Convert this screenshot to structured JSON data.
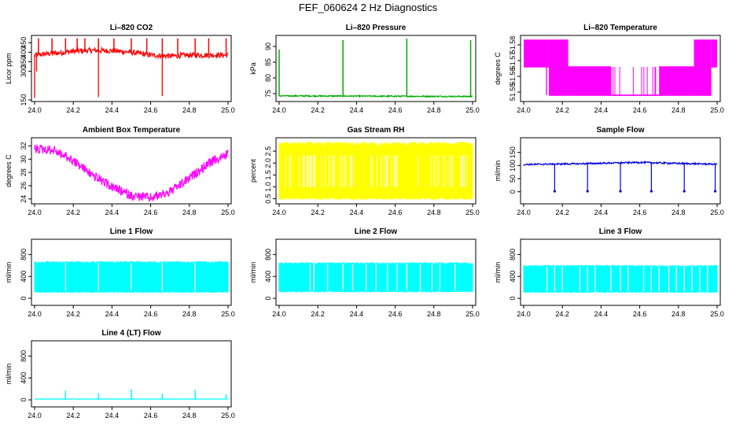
{
  "figure_title": "FEF_060624  2 Hz Diagnostics",
  "chart_data": [
    {
      "type": "line",
      "title": "Li–820 CO2",
      "ylabel": "Licor ppm",
      "color": "#ff0000",
      "xlim": [
        24.0,
        25.0
      ],
      "ylim": [
        150,
        480
      ],
      "x_ticks": [
        "24.0",
        "24.2",
        "24.4",
        "24.6",
        "24.8",
        "25.0"
      ],
      "y_ticks": [
        {
          "v": 150,
          "t": "150"
        },
        {
          "v": 300,
          "t": "300"
        },
        {
          "v": 350,
          "t": "350"
        },
        {
          "v": 400,
          "t": "400"
        },
        {
          "v": 450,
          "t": "450"
        }
      ],
      "series": {
        "base": [
          [
            24.0,
            385
          ],
          [
            24.1,
            395
          ],
          [
            24.2,
            405
          ],
          [
            24.3,
            410
          ],
          [
            24.4,
            408
          ],
          [
            24.5,
            400
          ],
          [
            24.6,
            385
          ],
          [
            24.7,
            380
          ],
          [
            24.8,
            385
          ],
          [
            24.9,
            385
          ],
          [
            25.0,
            385
          ]
        ],
        "noise": 14,
        "spikes_up": [
          24.02,
          24.09,
          24.16,
          24.22,
          24.26,
          24.33,
          24.41,
          24.5,
          24.58,
          24.66,
          24.74,
          24.83,
          24.9,
          24.99
        ],
        "spikes_down": [
          [
            24.0,
            160
          ],
          [
            24.33,
            165
          ],
          [
            24.66,
            170
          ],
          [
            24.01,
            300
          ]
        ]
      }
    },
    {
      "type": "line",
      "title": "Li–820 Pressure",
      "ylabel": "kPa",
      "color": "#00aa00",
      "xlim": [
        24.0,
        25.0
      ],
      "ylim": [
        73,
        93
      ],
      "x_ticks": [
        "24.0",
        "24.2",
        "24.4",
        "24.6",
        "24.8",
        "25.0"
      ],
      "y_ticks": [
        {
          "v": 75,
          "t": "75"
        },
        {
          "v": 80,
          "t": "80"
        },
        {
          "v": 85,
          "t": "85"
        },
        {
          "v": 90,
          "t": "90"
        }
      ],
      "series": {
        "base": [
          [
            24.0,
            74.3
          ],
          [
            25.0,
            74.1
          ]
        ],
        "noise": 0.2,
        "spikes_up_to": [
          [
            24.0,
            89
          ],
          [
            24.33,
            92
          ],
          [
            24.66,
            92.5
          ],
          [
            24.99,
            92
          ]
        ]
      }
    },
    {
      "type": "line",
      "title": "Li–820 Temperature",
      "ylabel": "degrees C",
      "color": "#ff00ff",
      "xlim": [
        24.0,
        25.0
      ],
      "ylim": [
        51.545,
        51.585
      ],
      "x_ticks": [
        "24.0",
        "24.2",
        "24.4",
        "24.6",
        "24.8",
        "25.0"
      ],
      "y_ticks": [
        {
          "v": 51.55,
          "t": "51.55"
        },
        {
          "v": 51.56,
          "t": "51.56"
        },
        {
          "v": 51.57,
          "t": "51.57"
        },
        {
          "v": 51.58,
          "t": "51.58"
        }
      ],
      "series": {
        "levels": [
          51.548,
          51.566,
          51.583
        ],
        "bands": [
          [
            24.0,
            24.13,
            1,
            2
          ],
          [
            24.13,
            24.23,
            0,
            2
          ],
          [
            24.23,
            24.45,
            0,
            1
          ],
          [
            24.45,
            24.7,
            0,
            0
          ],
          [
            24.7,
            24.88,
            0,
            1
          ],
          [
            24.88,
            24.97,
            0,
            2
          ],
          [
            24.97,
            25.0,
            1,
            2
          ]
        ]
      }
    },
    {
      "type": "line",
      "title": "Ambient Box Temperature",
      "ylabel": "degrees C",
      "color": "#ff00ff",
      "xlim": [
        24.0,
        25.0
      ],
      "ylim": [
        23.5,
        33
      ],
      "x_ticks": [
        "24.0",
        "24.2",
        "24.4",
        "24.6",
        "24.8",
        "25.0"
      ],
      "y_ticks": [
        {
          "v": 24,
          "t": "24"
        },
        {
          "v": 26,
          "t": "26"
        },
        {
          "v": 28,
          "t": "28"
        },
        {
          "v": 30,
          "t": "30"
        },
        {
          "v": 32,
          "t": "32"
        }
      ],
      "series": {
        "base": [
          [
            24.0,
            32.0
          ],
          [
            24.1,
            31.8
          ],
          [
            24.2,
            30.2
          ],
          [
            24.3,
            28.0
          ],
          [
            24.4,
            26.2
          ],
          [
            24.5,
            24.9
          ],
          [
            24.6,
            24.6
          ],
          [
            24.7,
            25.5
          ],
          [
            24.8,
            27.5
          ],
          [
            24.9,
            29.8
          ],
          [
            25.0,
            31.2
          ]
        ],
        "noise": 0.9
      }
    },
    {
      "type": "line",
      "title": "Gas Stream RH",
      "ylabel": "percent",
      "color": "#ffff00",
      "xlim": [
        24.0,
        25.0
      ],
      "ylim": [
        0.35,
        3.0
      ],
      "x_ticks": [
        "24.0",
        "24.2",
        "24.4",
        "24.6",
        "24.8",
        "25.0"
      ],
      "y_ticks": [
        {
          "v": 0.5,
          "t": "0.5"
        },
        {
          "v": 1.0,
          "t": "1.0"
        },
        {
          "v": 1.5,
          "t": "1.5"
        },
        {
          "v": 2.0,
          "t": "2.0"
        },
        {
          "v": 2.5,
          "t": "2.5"
        }
      ],
      "series": {
        "band": [
          0.45,
          2.9
        ]
      }
    },
    {
      "type": "line",
      "title": "Sample Flow",
      "ylabel": "ml/min",
      "color": "#0000dd",
      "xlim": [
        24.0,
        25.0
      ],
      "ylim": [
        -40,
        200
      ],
      "x_ticks": [
        "24.0",
        "24.2",
        "24.4",
        "24.6",
        "24.8",
        "25.0"
      ],
      "y_ticks": [
        {
          "v": 0,
          "t": "0"
        },
        {
          "v": 50,
          "t": "50"
        },
        {
          "v": 100,
          "t": "100"
        },
        {
          "v": 150,
          "t": "150"
        }
      ],
      "series": {
        "base": [
          [
            24.0,
            104
          ],
          [
            24.3,
            107
          ],
          [
            24.6,
            112
          ],
          [
            24.8,
            108
          ],
          [
            25.0,
            105
          ]
        ],
        "noise": 3,
        "dips": [
          24.16,
          24.33,
          24.5,
          24.66,
          24.83,
          24.99
        ]
      }
    },
    {
      "type": "line",
      "title": "Line 1 Flow",
      "ylabel": "ml/min",
      "color": "#00ffff",
      "xlim": [
        24.0,
        25.0
      ],
      "ylim": [
        -100,
        1050
      ],
      "x_ticks": [
        "24.0",
        "24.2",
        "24.4",
        "24.6",
        "24.8",
        "25.0"
      ],
      "y_ticks": [
        {
          "v": 0,
          "t": "0"
        },
        {
          "v": 400,
          "t": "400"
        },
        {
          "v": 800,
          "t": "800"
        }
      ],
      "series": {
        "band": [
          100,
          680
        ],
        "gaps": [
          24.16,
          24.33,
          24.5,
          24.66,
          24.83
        ]
      }
    },
    {
      "type": "line",
      "title": "Line 2 Flow",
      "ylabel": "ml/min",
      "color": "#00ffff",
      "xlim": [
        24.0,
        25.0
      ],
      "ylim": [
        -100,
        1050
      ],
      "x_ticks": [
        "24.0",
        "24.2",
        "24.4",
        "24.6",
        "24.8",
        "25.0"
      ],
      "y_ticks": [
        {
          "v": 0,
          "t": "0"
        },
        {
          "v": 400,
          "t": "400"
        },
        {
          "v": 800,
          "t": "800"
        }
      ],
      "series": {
        "band": [
          110,
          660
        ],
        "gaps": [
          24.16,
          24.18,
          24.25,
          24.33,
          24.38,
          24.45,
          24.5,
          24.56,
          24.61,
          24.66,
          24.73,
          24.79,
          24.83,
          24.91
        ]
      }
    },
    {
      "type": "line",
      "title": "Line 3 Flow",
      "ylabel": "ml/min",
      "color": "#00ffff",
      "xlim": [
        24.0,
        25.0
      ],
      "ylim": [
        -100,
        1050
      ],
      "x_ticks": [
        "24.0",
        "24.2",
        "24.4",
        "24.6",
        "24.8",
        "25.0"
      ],
      "y_ticks": [
        {
          "v": 0,
          "t": "0"
        },
        {
          "v": 400,
          "t": "400"
        },
        {
          "v": 800,
          "t": "800"
        }
      ],
      "series": {
        "band": [
          100,
          610
        ],
        "gaps": [
          24.12,
          24.16,
          24.2,
          24.29,
          24.33,
          24.37,
          24.45,
          24.5,
          24.54,
          24.62,
          24.66,
          24.7,
          24.75,
          24.79,
          24.83,
          24.87,
          24.91,
          24.95
        ]
      }
    },
    {
      "type": "line",
      "title": "Line 4 (LT) Flow",
      "ylabel": "ml/min",
      "color": "#00ffff",
      "xlim": [
        24.0,
        25.0
      ],
      "ylim": [
        -100,
        1050
      ],
      "x_ticks": [
        "24.0",
        "24.2",
        "24.4",
        "24.6",
        "24.8",
        "25.0"
      ],
      "y_ticks": [
        {
          "v": 0,
          "t": "0"
        },
        {
          "v": 400,
          "t": "400"
        },
        {
          "v": 800,
          "t": "800"
        }
      ],
      "series": {
        "base": [
          [
            24.0,
            15
          ],
          [
            25.0,
            15
          ]
        ],
        "noise": 3,
        "spikes_up_to": [
          [
            24.16,
            170
          ],
          [
            24.33,
            120
          ],
          [
            24.5,
            190
          ],
          [
            24.66,
            110
          ],
          [
            24.83,
            180
          ],
          [
            24.99,
            100
          ]
        ]
      }
    }
  ]
}
